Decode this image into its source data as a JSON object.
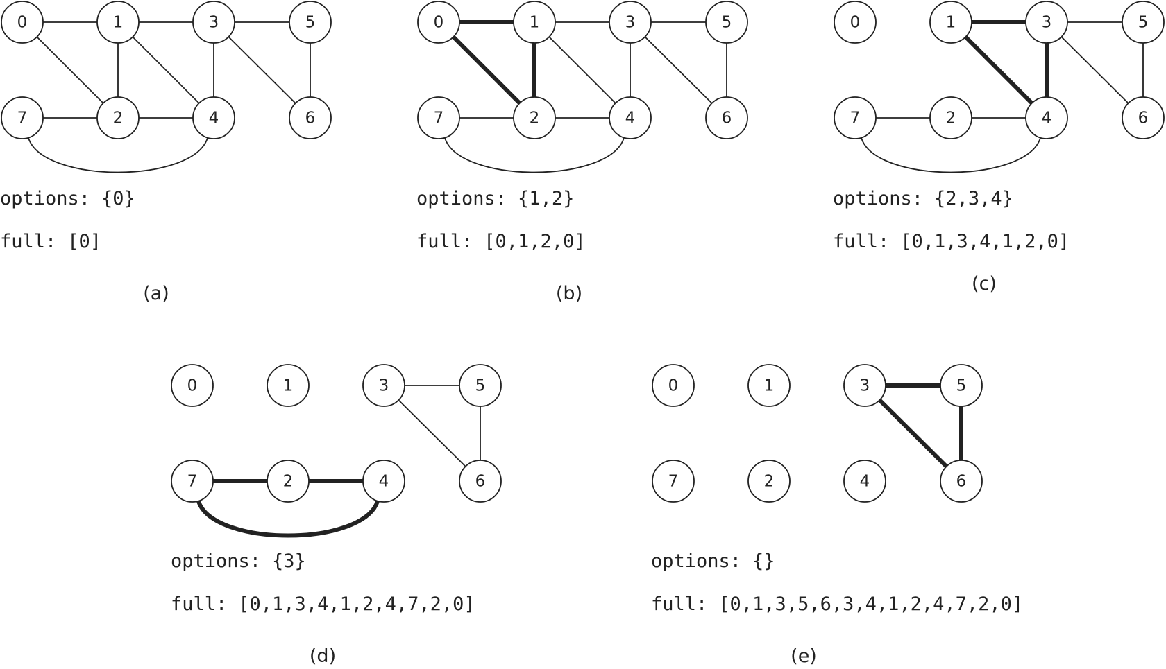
{
  "panels": [
    {
      "caption": "(a)",
      "options_label": "options:",
      "options_value": "{0}",
      "full_label": "full:",
      "full_value": "[0]",
      "nodes": [
        "0",
        "1",
        "3",
        "5",
        "7",
        "2",
        "4",
        "6"
      ],
      "edges": [
        [
          "0",
          "1"
        ],
        [
          "1",
          "3"
        ],
        [
          "3",
          "5"
        ],
        [
          "0",
          "2"
        ],
        [
          "1",
          "2"
        ],
        [
          "1",
          "4"
        ],
        [
          "3",
          "4"
        ],
        [
          "3",
          "6"
        ],
        [
          "5",
          "6"
        ],
        [
          "7",
          "2"
        ],
        [
          "2",
          "4"
        ],
        [
          "7",
          "4"
        ]
      ],
      "bold_edges": []
    },
    {
      "caption": "(b)",
      "options_label": "options:",
      "options_value": "{1,2}",
      "full_label": "full:",
      "full_value": "[0,1,2,0]",
      "nodes": [
        "0",
        "1",
        "3",
        "5",
        "7",
        "2",
        "4",
        "6"
      ],
      "edges": [
        [
          "1",
          "3"
        ],
        [
          "3",
          "5"
        ],
        [
          "1",
          "4"
        ],
        [
          "3",
          "4"
        ],
        [
          "3",
          "6"
        ],
        [
          "5",
          "6"
        ],
        [
          "7",
          "2"
        ],
        [
          "2",
          "4"
        ],
        [
          "7",
          "4"
        ]
      ],
      "bold_edges": [
        [
          "0",
          "1"
        ],
        [
          "0",
          "2"
        ],
        [
          "1",
          "2"
        ]
      ]
    },
    {
      "caption": "(c)",
      "options_label": "options:",
      "options_value": "{2,3,4}",
      "full_label": "full:",
      "full_value": "[0,1,3,4,1,2,0]",
      "nodes": [
        "0",
        "1",
        "3",
        "5",
        "7",
        "2",
        "4",
        "6"
      ],
      "edges": [
        [
          "3",
          "5"
        ],
        [
          "3",
          "6"
        ],
        [
          "5",
          "6"
        ],
        [
          "7",
          "2"
        ],
        [
          "2",
          "4"
        ],
        [
          "7",
          "4"
        ]
      ],
      "bold_edges": [
        [
          "1",
          "3"
        ],
        [
          "1",
          "4"
        ],
        [
          "3",
          "4"
        ]
      ]
    },
    {
      "caption": "(d)",
      "options_label": "options:",
      "options_value": "{3}",
      "full_label": "full:",
      "full_value": "[0,1,3,4,1,2,4,7,2,0]",
      "nodes": [
        "0",
        "1",
        "3",
        "5",
        "7",
        "2",
        "4",
        "6"
      ],
      "edges": [
        [
          "3",
          "5"
        ],
        [
          "3",
          "6"
        ],
        [
          "5",
          "6"
        ]
      ],
      "bold_edges": [
        [
          "7",
          "2"
        ],
        [
          "2",
          "4"
        ],
        [
          "7",
          "4"
        ]
      ]
    },
    {
      "caption": "(e)",
      "options_label": "options:",
      "options_value": "{}",
      "full_label": "full:",
      "full_value": "[0,1,3,5,6,3,4,1,2,4,7,2,0]",
      "nodes": [
        "0",
        "1",
        "3",
        "5",
        "7",
        "2",
        "4",
        "6"
      ],
      "edges": [],
      "bold_edges": [
        [
          "3",
          "5"
        ],
        [
          "3",
          "6"
        ],
        [
          "5",
          "6"
        ]
      ]
    }
  ]
}
